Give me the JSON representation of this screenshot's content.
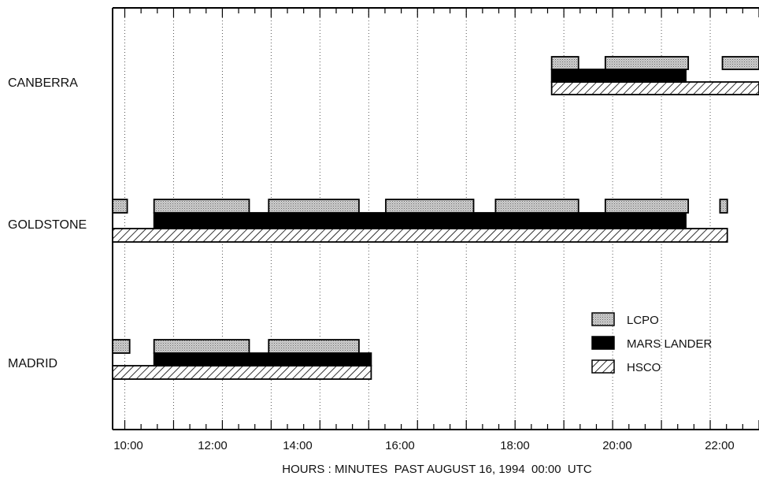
{
  "chart_data": {
    "type": "gantt",
    "xlabel": "HOURS : MINUTES  PAST AUGUST 16, 1994  00:00  UTC",
    "x_unit": "hours",
    "xlim": [
      9.75,
      23.0
    ],
    "x_ticks": [
      {
        "value": 10,
        "label": "10:00"
      },
      {
        "value": 12,
        "label": "12:00"
      },
      {
        "value": 14,
        "label": "14:00"
      },
      {
        "value": 16,
        "label": "16:00"
      },
      {
        "value": 18,
        "label": "18:00"
      },
      {
        "value": 20,
        "label": "20:00"
      },
      {
        "value": 22,
        "label": "22:00"
      }
    ],
    "grid": "vertical dotted, hourly",
    "categories": [
      "CANBERRA",
      "GOLDSTONE",
      "MADRID"
    ],
    "legend_position": "right-center",
    "series": [
      {
        "name": "LCPO",
        "fill": "light-gray-stippled",
        "color": "#c4c4c4",
        "intervals": {
          "CANBERRA": [
            [
              18.75,
              19.3
            ],
            [
              19.85,
              21.55
            ],
            [
              22.25,
              23.0
            ]
          ],
          "GOLDSTONE": [
            [
              9.75,
              10.05
            ],
            [
              10.6,
              12.55
            ],
            [
              12.95,
              14.8
            ],
            [
              15.35,
              17.15
            ],
            [
              17.6,
              19.3
            ],
            [
              19.85,
              21.55
            ],
            [
              22.2,
              22.35
            ]
          ],
          "MADRID": [
            [
              9.75,
              10.1
            ],
            [
              10.6,
              12.55
            ],
            [
              12.95,
              14.8
            ]
          ]
        }
      },
      {
        "name": "MARS LANDER",
        "fill": "solid",
        "color": "#000000",
        "intervals": {
          "CANBERRA": [
            [
              18.75,
              21.5
            ]
          ],
          "GOLDSTONE": [
            [
              10.6,
              21.5
            ]
          ],
          "MADRID": [
            [
              10.6,
              15.05
            ]
          ]
        }
      },
      {
        "name": "HSCO",
        "fill": "diagonal-hatch",
        "color": "#000000",
        "intervals": {
          "CANBERRA": [
            [
              18.75,
              23.0
            ]
          ],
          "GOLDSTONE": [
            [
              9.75,
              22.35
            ]
          ],
          "MADRID": [
            [
              9.75,
              15.05
            ]
          ]
        }
      }
    ]
  }
}
